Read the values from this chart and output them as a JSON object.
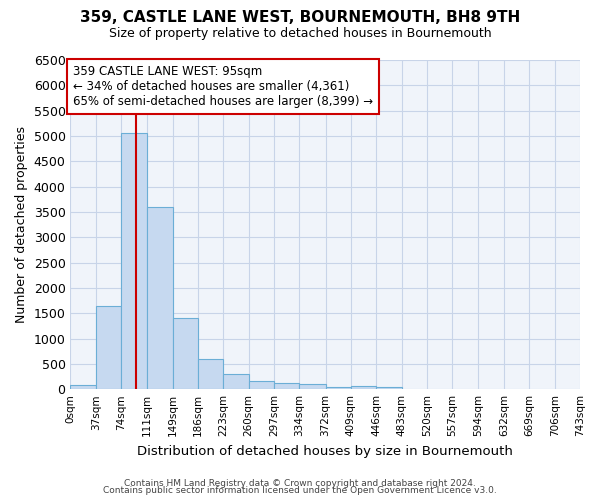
{
  "title": "359, CASTLE LANE WEST, BOURNEMOUTH, BH8 9TH",
  "subtitle": "Size of property relative to detached houses in Bournemouth",
  "xlabel": "Distribution of detached houses by size in Bournemouth",
  "ylabel": "Number of detached properties",
  "bin_edges": [
    0,
    37,
    74,
    111,
    149,
    186,
    223,
    260,
    297,
    334,
    372,
    409,
    446,
    483,
    520,
    557,
    594,
    632,
    669,
    706,
    743
  ],
  "bar_heights": [
    75,
    1650,
    5050,
    3600,
    1400,
    600,
    300,
    160,
    130,
    100,
    50,
    60,
    50,
    0,
    0,
    0,
    0,
    0,
    0,
    0
  ],
  "bar_color": "#c6d9f0",
  "bar_edge_color": "#6baed6",
  "property_size": 95,
  "vline_color": "#cc0000",
  "annotation_line1": "359 CASTLE LANE WEST: 95sqm",
  "annotation_line2": "← 34% of detached houses are smaller (4,361)",
  "annotation_line3": "65% of semi-detached houses are larger (8,399) →",
  "annotation_box_color": "white",
  "annotation_box_edge": "#cc0000",
  "ylim": [
    0,
    6500
  ],
  "yticks": [
    0,
    500,
    1000,
    1500,
    2000,
    2500,
    3000,
    3500,
    4000,
    4500,
    5000,
    5500,
    6000,
    6500
  ],
  "grid_color": "#c8d4e8",
  "background_color": "#ffffff",
  "plot_bg_color": "#f0f4fa",
  "footer1": "Contains HM Land Registry data © Crown copyright and database right 2024.",
  "footer2": "Contains public sector information licensed under the Open Government Licence v3.0."
}
